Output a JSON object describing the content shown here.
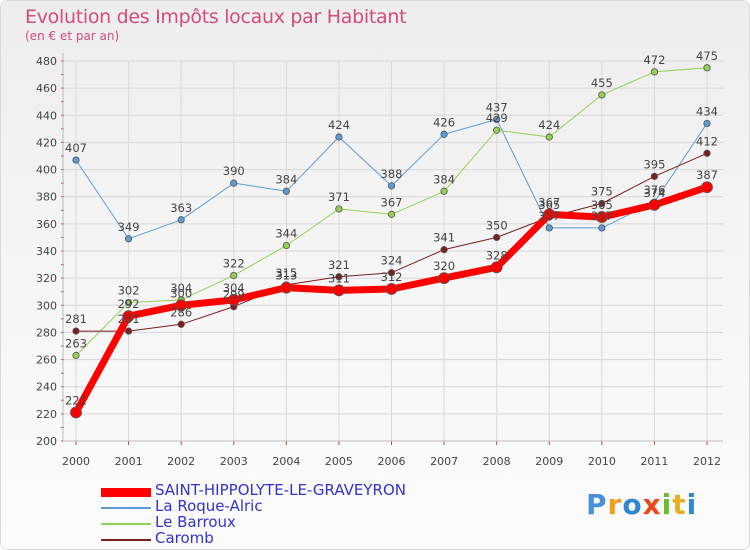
{
  "header": {
    "title": "Evolution des Impôts locaux par Habitant",
    "subtitle": "(en € et par an)"
  },
  "logo": {
    "letters": [
      "P",
      "r",
      "o",
      "x",
      "i",
      "t",
      "i"
    ],
    "colors": [
      "#4a90d9",
      "#f0a020",
      "#2d8ad0",
      "#e84a1c",
      "#6cbd2c",
      "#e8b020",
      "#2d8ad0"
    ]
  },
  "chart_data": {
    "type": "line",
    "title": "Evolution des Impôts locaux par Habitant",
    "subtitle": "(en € et par an)",
    "xlabel": "",
    "ylabel": "",
    "categories": [
      "2000",
      "2001",
      "2002",
      "2003",
      "2004",
      "2005",
      "2006",
      "2007",
      "2008",
      "2009",
      "2010",
      "2011",
      "2012"
    ],
    "ylim": [
      200,
      480
    ],
    "yticks": [
      200,
      220,
      240,
      260,
      280,
      300,
      320,
      340,
      360,
      380,
      400,
      420,
      440,
      460,
      480
    ],
    "grid": true,
    "legend_position": "bottom-left",
    "series": [
      {
        "name": "SAINT-HIPPOLYTE-LE-GRAVEYRON",
        "color": "#ff0000",
        "text_color": "#3333cc",
        "width": 7,
        "values": [
          221,
          292,
          300,
          304,
          313,
          311,
          312,
          320,
          328,
          367,
          365,
          374,
          387
        ]
      },
      {
        "name": "La Roque-Alric",
        "color": "#5b9bd5",
        "text_color": "#3333cc",
        "width": 1,
        "values": [
          407,
          349,
          363,
          390,
          384,
          424,
          388,
          426,
          437,
          357,
          357,
          376,
          434
        ]
      },
      {
        "name": "Le Barroux",
        "color": "#92d050",
        "text_color": "#3333cc",
        "width": 1,
        "values": [
          263,
          302,
          304,
          322,
          344,
          371,
          367,
          384,
          429,
          424,
          455,
          472,
          475
        ]
      },
      {
        "name": "Caromb",
        "color": "#7b1f1f",
        "text_color": "#3333cc",
        "width": 1,
        "values": [
          281,
          281,
          286,
          299,
          315,
          321,
          324,
          341,
          350,
          365,
          375,
          395,
          412
        ]
      }
    ]
  }
}
